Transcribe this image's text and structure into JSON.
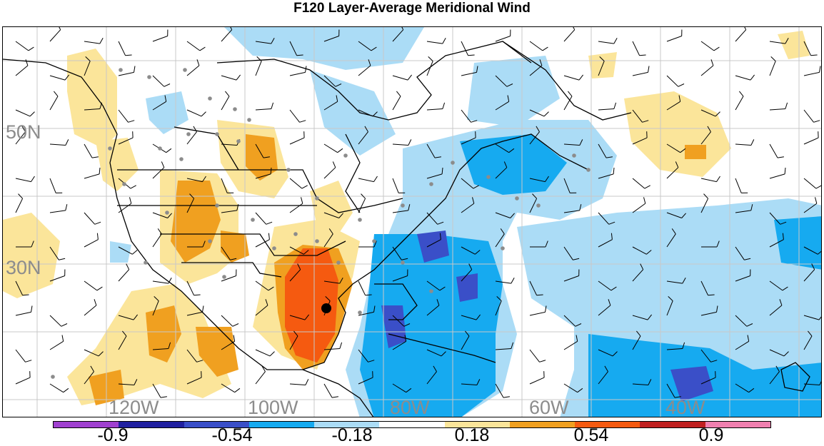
{
  "title": "F120 Layer-Average Meridional Wind",
  "colors": {
    "neg_strong": "#3a4fc8",
    "neg_mid": "#16aaf0",
    "neg_weak": "#abdcf6",
    "pos_weak": "#fbe59a",
    "pos_mid": "#f0a020",
    "pos_strong": "#f55a10",
    "coast": "#000000",
    "grid": "#c8c8c8",
    "station": "#8c8c8c"
  },
  "axis_labels": {
    "lat": [
      "50N",
      "30N"
    ],
    "lon": [
      "120W",
      "100W",
      "80W",
      "60W",
      "40W"
    ]
  },
  "colorbar": {
    "colors": [
      "#a040d0",
      "#2020a0",
      "#3a4fc8",
      "#16aaf0",
      "#abdcf6",
      "#ffffff",
      "#fbe59a",
      "#f0a020",
      "#f55a10",
      "#c02020",
      "#f080b0"
    ],
    "labels": [
      "-0.9",
      "-0.54",
      "-0.18",
      "0.18",
      "0.54",
      "0.9"
    ]
  }
}
